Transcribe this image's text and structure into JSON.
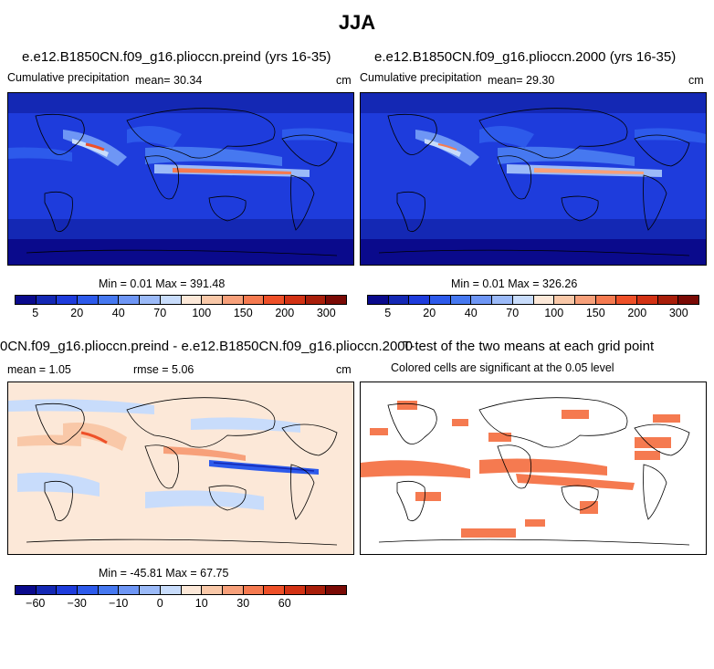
{
  "figure": {
    "title": "JJA"
  },
  "panels": {
    "p1": {
      "title": "e.e12.B1850CN.f09_g16.plioccn.preind (yrs 16-35)",
      "label": "Cumulative precipitation",
      "mean": "mean=  30.34",
      "units": "cm",
      "minmax": "Min =    0.01  Max = 391.48"
    },
    "p2": {
      "title": "e.e12.B1850CN.f09_g16.plioccn.2000 (yrs 16-35)",
      "label": "Cumulative precipitation",
      "mean": "mean=  29.30",
      "units": "cm",
      "minmax": "Min =    0.01  Max = 326.26"
    },
    "p3": {
      "title": "0CN.f09_g16.plioccn.preind - e.e12.B1850CN.f09_g16.plioccn.2000",
      "mean": "mean =     1.05",
      "rmse": "rmse =     5.06",
      "units": "cm",
      "minmax": "Min = -45.81  Max =   67.75"
    },
    "p4": {
      "title": "T-test of the two means at each grid point",
      "subtitle": "Colored cells are significant at the 0.05 level"
    }
  },
  "colorbars": {
    "precip": {
      "colors": [
        "#0a0a8c",
        "#1428b4",
        "#1e3cdc",
        "#2d5aeb",
        "#4678f0",
        "#6e96f5",
        "#9bbaf8",
        "#c8dcfb",
        "#fce8d8",
        "#f9c8a8",
        "#f7a07a",
        "#f57a50",
        "#ee5028",
        "#d23214",
        "#a81e0a",
        "#7a0a05"
      ],
      "ticks": [
        "5",
        "20",
        "40",
        "70",
        "100",
        "150",
        "200",
        "300"
      ]
    },
    "diff": {
      "colors": [
        "#0a0a8c",
        "#1428b4",
        "#1e3cdc",
        "#2d5aeb",
        "#4678f0",
        "#6e96f5",
        "#9bbaf8",
        "#c8dcfb",
        "#fce8d8",
        "#f9c8a8",
        "#f7a07a",
        "#f57a50",
        "#ee5028",
        "#d23214",
        "#a81e0a",
        "#7a0a05"
      ],
      "ticks": [
        "−60",
        "−30",
        "−10",
        "0",
        "10",
        "30",
        "60"
      ]
    }
  }
}
